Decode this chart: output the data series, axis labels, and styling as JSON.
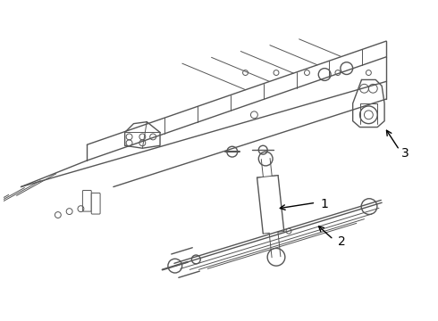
{
  "background_color": "#ffffff",
  "line_color": "#555555",
  "label_color": "#000000",
  "fig_width": 4.9,
  "fig_height": 3.6,
  "dpi": 100
}
